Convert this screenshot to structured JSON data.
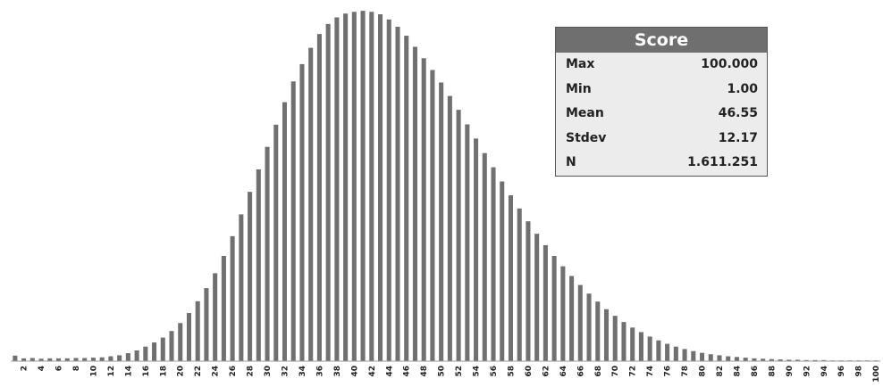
{
  "chart_data": {
    "type": "bar",
    "title": "",
    "xlabel": "",
    "ylabel": "",
    "x": [
      1,
      2,
      3,
      4,
      5,
      6,
      7,
      8,
      9,
      10,
      11,
      12,
      13,
      14,
      15,
      16,
      17,
      18,
      19,
      20,
      21,
      22,
      23,
      24,
      25,
      26,
      27,
      28,
      29,
      30,
      31,
      32,
      33,
      34,
      35,
      36,
      37,
      38,
      39,
      40,
      41,
      42,
      43,
      44,
      45,
      46,
      47,
      48,
      49,
      50,
      51,
      52,
      53,
      54,
      55,
      56,
      57,
      58,
      59,
      60,
      61,
      62,
      63,
      64,
      65,
      66,
      67,
      68,
      69,
      70,
      71,
      72,
      73,
      74,
      75,
      76,
      77,
      78,
      79,
      80,
      81,
      82,
      83,
      84,
      85,
      86,
      87,
      88,
      89,
      90,
      91,
      92,
      93,
      94,
      95,
      96,
      97,
      98,
      99,
      100
    ],
    "values": [
      1.6,
      0.8,
      0.9,
      0.7,
      0.8,
      0.8,
      0.8,
      0.9,
      0.9,
      1.0,
      1.1,
      1.4,
      1.7,
      2.3,
      3.1,
      4.2,
      5.4,
      6.8,
      8.7,
      11.0,
      13.9,
      17.3,
      21.1,
      25.4,
      30.4,
      36.1,
      42.4,
      48.9,
      55.4,
      61.9,
      68.3,
      74.8,
      80.8,
      85.8,
      90.5,
      94.5,
      97.4,
      99.3,
      100.4,
      100.9,
      101.2,
      100.9,
      100.2,
      98.7,
      96.6,
      94.0,
      90.8,
      87.5,
      84.1,
      80.5,
      76.6,
      72.6,
      68.4,
      64.3,
      60.1,
      56.0,
      51.9,
      47.9,
      44.1,
      40.4,
      36.8,
      33.5,
      30.4,
      27.4,
      24.6,
      22.0,
      19.5,
      17.2,
      15.0,
      13.1,
      11.3,
      9.7,
      8.4,
      7.1,
      6.0,
      5.0,
      4.2,
      3.5,
      2.9,
      2.4,
      2.0,
      1.7,
      1.4,
      1.2,
      1.0,
      0.8,
      0.7,
      0.6,
      0.5,
      0.4,
      0.4,
      0.3,
      0.3,
      0.3,
      0.2,
      0.2,
      0.2,
      0.2,
      0.2,
      0.2
    ],
    "tick_labels": [
      "2",
      "4",
      "6",
      "8",
      "10",
      "12",
      "14",
      "16",
      "18",
      "20",
      "22",
      "24",
      "26",
      "28",
      "30",
      "32",
      "34",
      "36",
      "38",
      "40",
      "42",
      "44",
      "46",
      "48",
      "50",
      "52",
      "54",
      "56",
      "58",
      "60",
      "62",
      "64",
      "66",
      "68",
      "70",
      "72",
      "74",
      "76",
      "78",
      "80",
      "82",
      "84",
      "86",
      "88",
      "90",
      "92",
      "94",
      "96",
      "98",
      "100"
    ],
    "ylim": [
      0,
      102
    ],
    "grid": false,
    "bar_color": "#707070"
  },
  "stats": {
    "title": "Score",
    "rows": [
      {
        "label": "Max",
        "value": "100.000"
      },
      {
        "label": "Min",
        "value": "1.00"
      },
      {
        "label": "Mean",
        "value": "46.55"
      },
      {
        "label": "Stdev",
        "value": "12.17"
      },
      {
        "label": "N",
        "value": "1.611.251"
      }
    ]
  }
}
